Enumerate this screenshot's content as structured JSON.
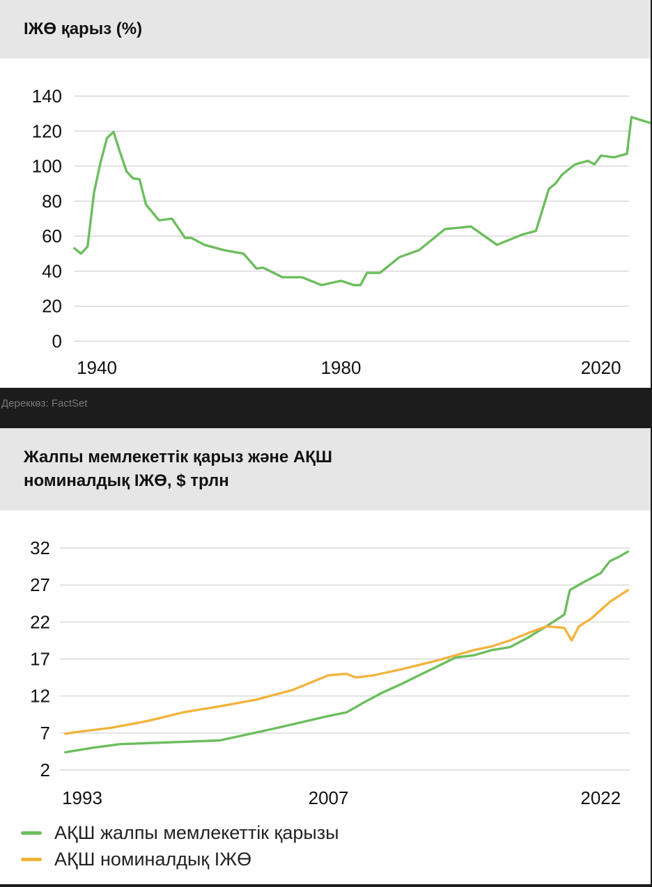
{
  "top_chart": {
    "title": "ІЖӨ қарыз (%)"
  },
  "source": "Дереккөз: FactSet",
  "bottom_chart": {
    "title_line1": "Жалпы мемлекеттік қарыз және АҚШ",
    "title_line2": "номиналдық ІЖӨ, $ трлн"
  },
  "colors": {
    "green": "#6cbd5e",
    "orange": "#f2b33d",
    "grid": "#cfcfcf"
  },
  "chart_data": [
    {
      "type": "line",
      "title": "ІЖӨ қарыз (%)",
      "xlabel": "",
      "ylabel": "",
      "xlim": [
        1939,
        2024
      ],
      "ylim": [
        0,
        140
      ],
      "yticks": [
        "0",
        "20",
        "40",
        "60",
        "80",
        "100",
        "120",
        "140"
      ],
      "xticks": [
        {
          "value": 1940,
          "label": "1940"
        },
        {
          "value": 1980,
          "label": "1980"
        },
        {
          "value": 2020,
          "label": "2020"
        }
      ],
      "grid": true,
      "series": [
        {
          "color": "#6cbd5e",
          "x": [
            1939,
            1940,
            1941,
            1942,
            1943,
            1944,
            1945,
            1946,
            1947,
            1948,
            1949,
            1950,
            1952,
            1954,
            1956,
            1957,
            1959,
            1962,
            1965,
            1967,
            1968,
            1971,
            1974,
            1977,
            1980,
            1982,
            1983,
            1984,
            1986,
            1989,
            1992,
            1996,
            2000,
            2004,
            2008,
            2009,
            2010,
            2012,
            2013,
            2014,
            2016,
            2018,
            2019,
            2020,
            2022,
            2024
          ],
          "y": [
            53,
            50,
            54,
            85,
            102,
            116,
            119.5,
            108,
            97,
            93,
            92.5,
            78,
            69,
            70,
            59,
            59,
            55,
            52,
            50,
            41.5,
            42,
            36.5,
            36.5,
            32,
            34.5,
            32,
            32,
            39,
            39,
            48,
            52,
            64,
            65.5,
            55,
            61,
            62,
            63,
            87,
            90,
            95,
            101,
            103,
            101,
            106,
            105,
            107
          ]
        },
        {
          "color": "#6cbd5e",
          "x": [
            2024,
            2024.7,
            2029
          ],
          "y": [
            107,
            128,
            123
          ]
        }
      ]
    },
    {
      "type": "line",
      "title": "Жалпы мемлекеттік қарыз және АҚШ номиналдық ІЖӨ, $ трлн",
      "xlabel": "",
      "ylabel": "",
      "xlim": [
        1992.2,
        2023.6
      ],
      "ylim": [
        2,
        32
      ],
      "yticks": [
        "2",
        "7",
        "12",
        "17",
        "22",
        "27",
        "32"
      ],
      "xticks": [
        {
          "value": 1993,
          "label": "1993"
        },
        {
          "value": 2007,
          "label": "2007"
        },
        {
          "value": 2022,
          "label": "2022"
        }
      ],
      "grid": true,
      "legend": "bottom-left",
      "series": [
        {
          "name": "АҚШ жалпы мемлекеттік қарызы",
          "color": "#6cbd5e",
          "x": [
            1992.5,
            1994,
            1995.5,
            2000,
            2001,
            2004,
            2007,
            2008,
            2009,
            2010,
            2011,
            2012,
            2013,
            2014,
            2015,
            2016,
            2017,
            2018,
            2019,
            2020,
            2020.3,
            2021,
            2022,
            2022.5,
            2023,
            2023.5
          ],
          "y": [
            4.4,
            5,
            5.5,
            5.9,
            6,
            7.6,
            9.3,
            9.8,
            11.2,
            12.5,
            13.6,
            14.8,
            16,
            17.2,
            17.5,
            18.2,
            18.6,
            19.9,
            21.4,
            23,
            26.3,
            27.3,
            28.6,
            30.2,
            30.8,
            31.5
          ]
        },
        {
          "name": "АҚШ номиналдық ІЖӨ",
          "color": "#f2b33d",
          "x": [
            1992.5,
            1993,
            1995,
            1997,
            1999,
            2001,
            2003,
            2005,
            2007,
            2008,
            2008.5,
            2009.5,
            2011,
            2012,
            2013,
            2014,
            2015,
            2016,
            2017,
            2018,
            2019,
            2020,
            2020.4,
            2020.8,
            2021.5,
            2022,
            2022.5,
            2023.5
          ],
          "y": [
            6.9,
            7.1,
            7.7,
            8.6,
            9.8,
            10.6,
            11.5,
            12.8,
            14.8,
            15,
            14.5,
            14.8,
            15.6,
            16.2,
            16.8,
            17.5,
            18.2,
            18.7,
            19.5,
            20.5,
            21.4,
            21.2,
            19.5,
            21.4,
            22.5,
            23.6,
            24.7,
            26.3
          ]
        }
      ]
    }
  ]
}
